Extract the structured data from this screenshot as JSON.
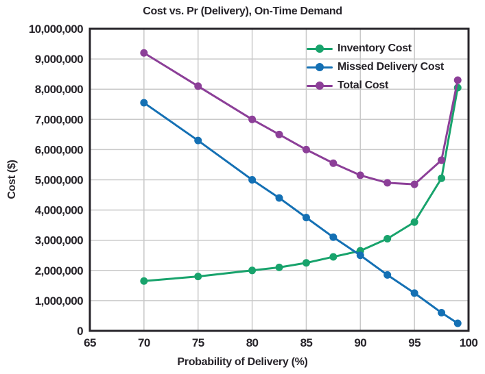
{
  "figure": {
    "background": "#ffffff",
    "text_color": "#27242a",
    "grid_color": "#c9c9c9",
    "border_color": "#27242a"
  },
  "chart_data": {
    "type": "line",
    "title": "Cost vs. Pr (Delivery), On-Time Demand",
    "xlabel": "Probability of Delivery (%)",
    "ylabel": "Cost ($)",
    "xlim": [
      65,
      100
    ],
    "ylim": [
      0,
      10000000
    ],
    "xticks": [
      65,
      70,
      75,
      80,
      85,
      90,
      95,
      100
    ],
    "xtick_labels": [
      "65",
      "70",
      "75",
      "80",
      "85",
      "90",
      "95",
      "100"
    ],
    "yticks": [
      0,
      1000000,
      2000000,
      3000000,
      4000000,
      5000000,
      6000000,
      7000000,
      8000000,
      9000000,
      10000000
    ],
    "ytick_labels": [
      "0",
      "1,000,000",
      "2,000,000",
      "3,000,000",
      "4,000,000",
      "5,000,000",
      "6,000,000",
      "7,000,000",
      "8,000,000",
      "9,000,000",
      "10,000,000"
    ],
    "grid": true,
    "legend_position": "upper-right-inside",
    "x": [
      70,
      75,
      80,
      82.5,
      85,
      87.5,
      90,
      92.5,
      95,
      97.5,
      99
    ],
    "series": [
      {
        "name": "Inventory Cost",
        "color": "#18a36c",
        "values": [
          1650000,
          1800000,
          2000000,
          2100000,
          2250000,
          2450000,
          2650000,
          3050000,
          3600000,
          5050000,
          8050000
        ]
      },
      {
        "name": "Missed Delivery Cost",
        "color": "#1470b4",
        "values": [
          7550000,
          6300000,
          5000000,
          4400000,
          3750000,
          3100000,
          2500000,
          1850000,
          1250000,
          600000,
          250000
        ]
      },
      {
        "name": "Total Cost",
        "color": "#8c3f98",
        "values": [
          9200000,
          8100000,
          7000000,
          6500000,
          6000000,
          5550000,
          5150000,
          4900000,
          4850000,
          5650000,
          8300000
        ]
      }
    ]
  }
}
